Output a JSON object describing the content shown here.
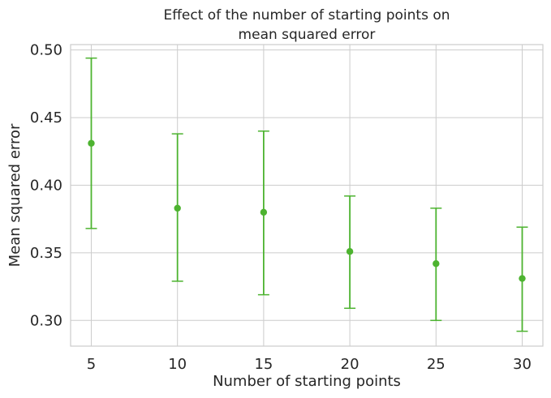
{
  "chart_data": {
    "type": "scatter",
    "title_lines": [
      "Effect of the number of starting points on",
      "mean squared error"
    ],
    "xlabel": "Number of starting points",
    "ylabel": "Mean squared error",
    "x": [
      5,
      10,
      15,
      20,
      25,
      30
    ],
    "y": [
      0.431,
      0.383,
      0.38,
      0.351,
      0.342,
      0.331
    ],
    "y_lower": [
      0.368,
      0.329,
      0.319,
      0.309,
      0.3,
      0.292
    ],
    "y_upper": [
      0.494,
      0.438,
      0.44,
      0.392,
      0.383,
      0.369
    ],
    "x_ticks": [
      "5",
      "10",
      "15",
      "20",
      "25",
      "30"
    ],
    "y_ticks": [
      0.3,
      0.35,
      0.4,
      0.45,
      0.5
    ],
    "y_tick_labels": [
      "0.30",
      "0.35",
      "0.40",
      "0.45",
      "0.50"
    ],
    "xlim": [
      3.8,
      31.2
    ],
    "ylim": [
      0.281,
      0.504
    ],
    "grid": true,
    "color": "#4db330"
  }
}
